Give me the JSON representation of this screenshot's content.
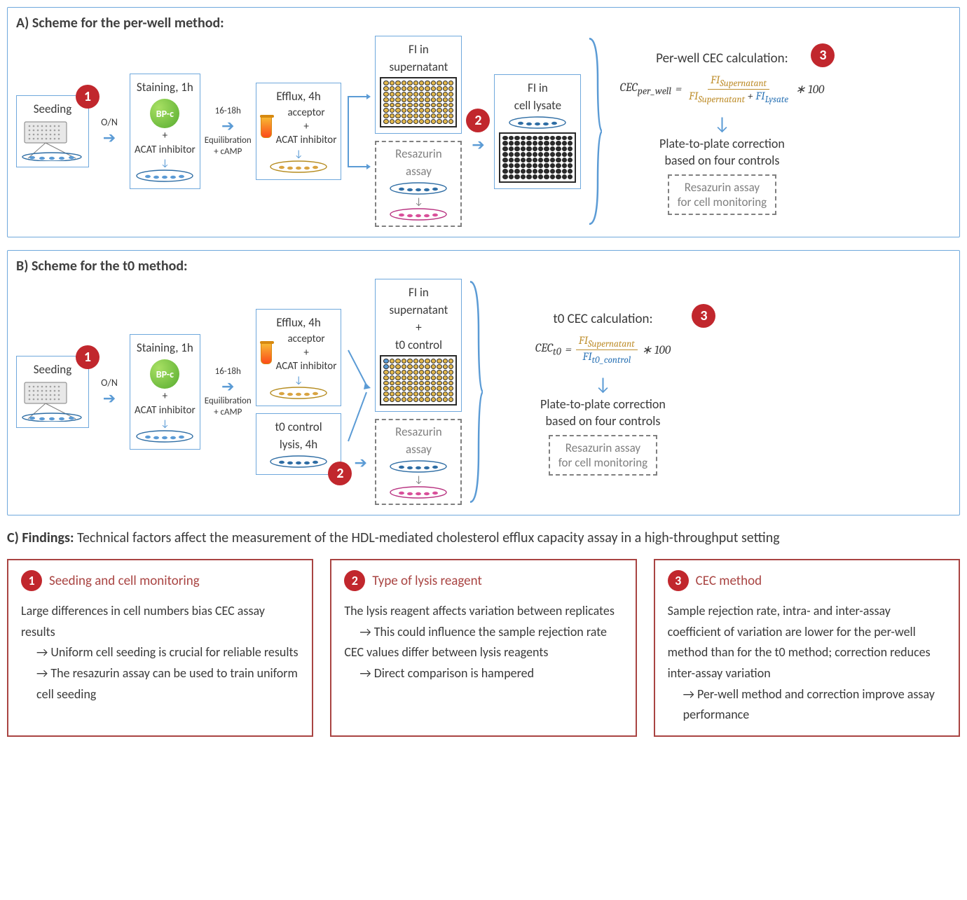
{
  "colors": {
    "panel_border": "#6fa8dc",
    "badge_bg": "#c1272d",
    "badge_fg": "#ffffff",
    "card_border": "#a94442",
    "card_title": "#a94442",
    "arrow_blue": "#5b9bd5",
    "text": "#3a3a3a",
    "grey": "#808080",
    "fi_gold": "#bf8f2e",
    "fi_blue": "#2e75b6",
    "well_gold": "#e2b84e",
    "well_black": "#2a2a2a",
    "dish_blue_fill": "#2e6da4",
    "dish_gold_fill": "#d9a441",
    "dish_pink_fill": "#d94f9a"
  },
  "panelA": {
    "title": "A) Scheme for the per-well method:",
    "steps": {
      "seeding": "Seeding",
      "on": "O/N",
      "staining": "Staining, 1h",
      "bpc": "BP-c",
      "plus": "+",
      "acat": "ACAT inhibitor",
      "equil": "16-18h",
      "equil2": "Equilibration",
      "equil3": "+ cAMP",
      "efflux": "Efflux, 4h",
      "acceptor": "acceptor",
      "fi_sup": "FI in",
      "fi_sup2": "supernatant",
      "resazurin": "Resazurin",
      "resazurin2": "assay",
      "fi_lysate": "FI in",
      "fi_lysate2": "cell lysate"
    },
    "calc": {
      "title": "Per-well CEC calculation:",
      "lhs": "CEC",
      "lhs_sub": "per_well",
      "eq": "=",
      "num": "FI",
      "num_sub": "Supernatant",
      "den_a": "FI",
      "den_a_sub": "Supernatant",
      "den_plus": "+",
      "den_b": "FI",
      "den_b_sub": "Lysate",
      "times": "∗ 100",
      "plate_corr1": "Plate-to-plate correction",
      "plate_corr2": "based on four controls",
      "resazurin_note1": "Resazurin assay",
      "resazurin_note2": "for cell monitoring"
    }
  },
  "panelB": {
    "title": "B) Scheme for the t0 method:",
    "steps": {
      "seeding": "Seeding",
      "on": "O/N",
      "staining": "Staining, 1h",
      "bpc": "BP-c",
      "plus": "+",
      "acat": "ACAT inhibitor",
      "equil": "16-18h",
      "equil2": "Equilibration",
      "equil3": "+ cAMP",
      "efflux": "Efflux, 4h",
      "acceptor": "acceptor",
      "t0control1": "t0 control",
      "t0control2": "lysis, 4h",
      "fi_in": "FI in",
      "fi_sup2": "supernatant",
      "plus2": "+",
      "t0c": "t0 control",
      "resazurin": "Resazurin",
      "resazurin2": "assay"
    },
    "calc": {
      "title": "t0 CEC calculation:",
      "lhs": "CEC",
      "lhs_sub": "t0",
      "eq": "=",
      "num": "FI",
      "num_sub": "Supernatant",
      "den": "FI",
      "den_sub": "t0_control",
      "times": "∗ 100",
      "plate_corr1": "Plate-to-plate correction",
      "plate_corr2": "based on four controls",
      "resazurin_note1": "Resazurin assay",
      "resazurin_note2": "for cell monitoring"
    }
  },
  "findings": {
    "lead_bold": "C) Findings:",
    "lead": " Technical factors affect the measurement of the HDL-mediated cholesterol efflux capacity assay in a high-throughput setting",
    "cards": [
      {
        "num": "1",
        "title": "Seeding and cell monitoring",
        "lines": [
          {
            "t": "Large differences in cell numbers bias CEC assay results",
            "a": false,
            "i": 0
          },
          {
            "t": "Uniform cell seeding is crucial for reliable results",
            "a": true,
            "i": 1
          },
          {
            "t": "The resazurin assay can be used to train uniform cell seeding",
            "a": true,
            "i": 1
          }
        ]
      },
      {
        "num": "2",
        "title": "Type of lysis reagent",
        "lines": [
          {
            "t": "The lysis reagent affects variation between replicates",
            "a": false,
            "i": 0
          },
          {
            "t": "This could influence the sample rejection rate",
            "a": true,
            "i": 1
          },
          {
            "t": "CEC values differ between lysis reagents",
            "a": false,
            "i": 0
          },
          {
            "t": "Direct comparison is hampered",
            "a": true,
            "i": 1
          }
        ]
      },
      {
        "num": "3",
        "title": "CEC method",
        "lines": [
          {
            "t": "Sample rejection rate, intra- and inter-assay coefficient of variation are lower for the per-well method than for the t0 method; correction reduces inter-assay variation",
            "a": false,
            "i": 0
          },
          {
            "t": "Per-well method and correction improve assay performance",
            "a": true,
            "i": 1
          }
        ]
      }
    ]
  },
  "icons": {
    "arrow_right": "➔"
  }
}
